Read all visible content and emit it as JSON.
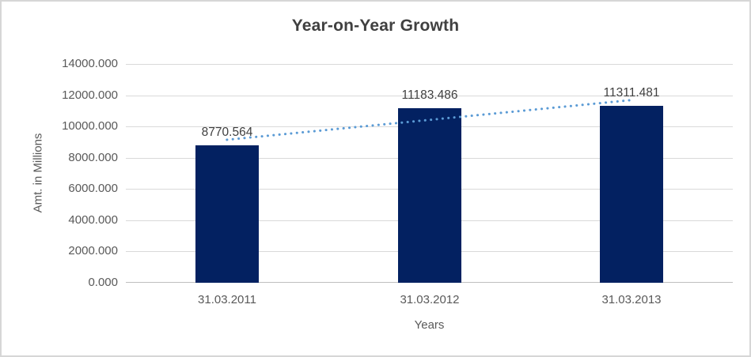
{
  "chart": {
    "colors": {
      "bar": "#032161",
      "trendline": "#5b9bd5",
      "gridline": "#d9d9d9",
      "axis_line": "#bfbfbf",
      "title_text": "#404040",
      "axis_text": "#595959",
      "data_label_text": "#404040",
      "frame_border": "#d6d6d6",
      "background": "#ffffff"
    }
  },
  "chart_data": {
    "type": "bar",
    "title": "Year-on-Year Growth",
    "categories": [
      "31.03.2011",
      "31.03.2012",
      "31.03.2013"
    ],
    "values": [
      8770.564,
      11183.486,
      11311.481
    ],
    "data_labels": [
      "8770.564",
      "11183.486",
      "11311.481"
    ],
    "xlabel": "Years",
    "ylabel": "Amt. in Millions",
    "ylim": [
      0,
      14000
    ],
    "y_tick_step": 2000,
    "y_tick_labels_top_to_bottom": [
      "14000.000",
      "12000.000",
      "10000.000",
      "8000.000",
      "6000.000",
      "4000.000",
      "2000.000",
      "0.000"
    ],
    "grid": true,
    "legend": false,
    "trendline": {
      "type": "linear",
      "style": "dotted"
    }
  }
}
